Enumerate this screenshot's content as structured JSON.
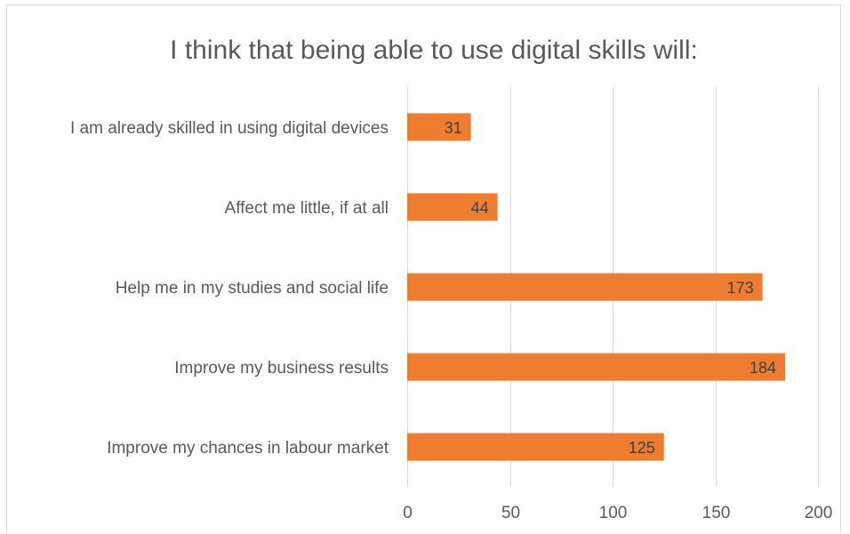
{
  "chart_data": {
    "type": "bar",
    "orientation": "horizontal",
    "title": "I think that being  able to use digital skills will:",
    "categories": [
      "I am already skilled in using digital devices",
      "Affect me little, if at all",
      "Help me in my studies and social life",
      "Improve my business results",
      "Improve my chances in labour market"
    ],
    "values": [
      31,
      44,
      173,
      184,
      125
    ],
    "xlim": [
      0,
      200
    ],
    "xticks": [
      0,
      50,
      100,
      150,
      200
    ],
    "grid": true,
    "legend": "none",
    "bar_color": "#ED7D31",
    "data_labels": true
  }
}
